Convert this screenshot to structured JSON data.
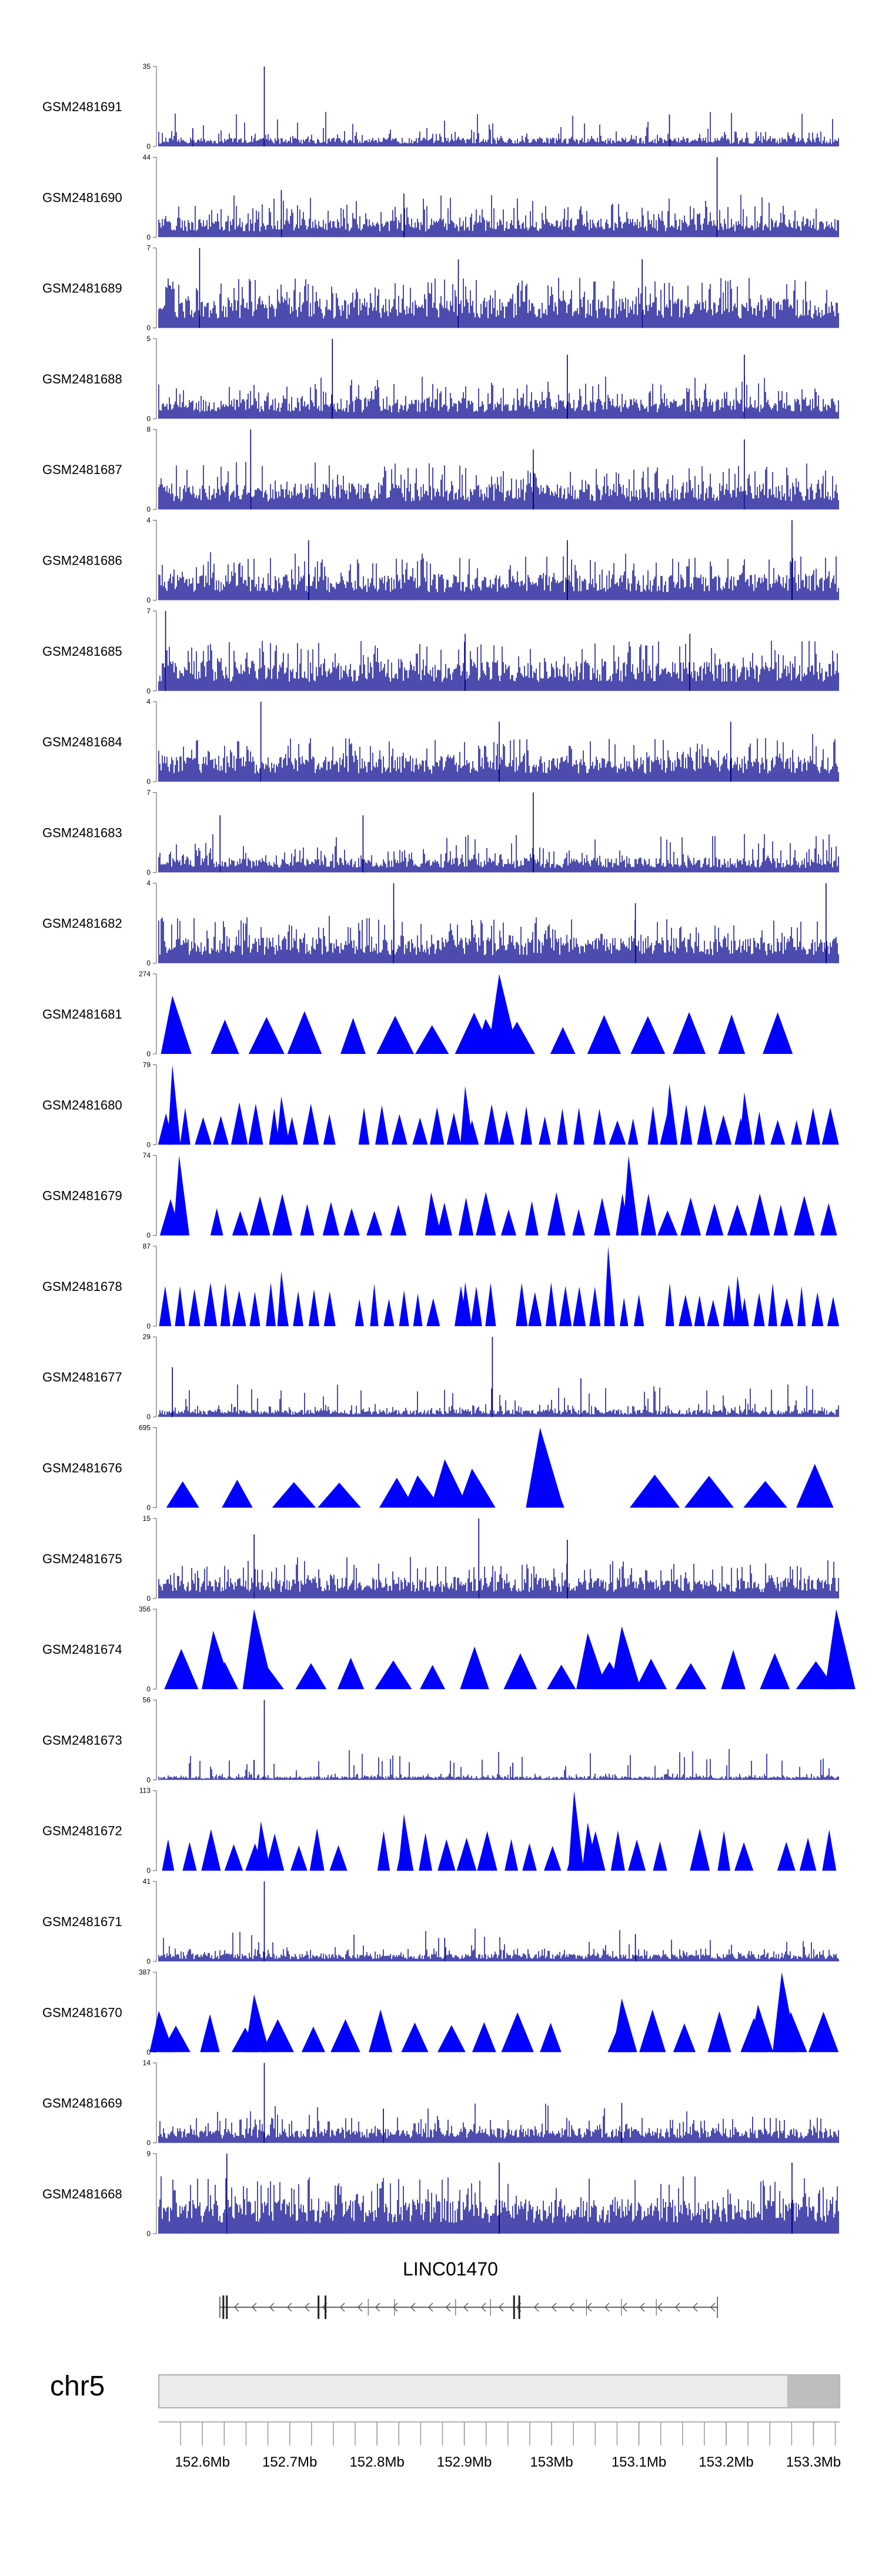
{
  "chart_data": {
    "type": "genome-tracks",
    "chromosome": "chr5",
    "region_mb": [
      152.55,
      153.33
    ],
    "colors": {
      "signal": "#00008b",
      "peak": "#0000ff",
      "ideogram": "#ebebeb",
      "ideogram_band": "#bebebe"
    },
    "tracks": [
      {
        "name": "GSM2481691",
        "kind": "signal",
        "ymax": "35",
        "ymax_value": 35,
        "baseline": 3,
        "spikes": [
          [
            0.155,
            35
          ],
          [
            0.75,
            14
          ],
          [
            0.05,
            8
          ]
        ]
      },
      {
        "name": "GSM2481690",
        "kind": "signal",
        "ymax": "44",
        "ymax_value": 44,
        "baseline": 8,
        "spikes": [
          [
            0.82,
            44
          ],
          [
            0.18,
            26
          ],
          [
            0.36,
            24
          ]
        ]
      },
      {
        "name": "GSM2481689",
        "kind": "signal",
        "ymax": "7",
        "ymax_value": 7,
        "baseline": 2,
        "spikes": [
          [
            0.06,
            7
          ],
          [
            0.44,
            6
          ],
          [
            0.71,
            6
          ]
        ]
      },
      {
        "name": "GSM2481688",
        "kind": "signal",
        "ymax": "5",
        "ymax_value": 5,
        "baseline": 1,
        "spikes": [
          [
            0.255,
            5
          ],
          [
            0.6,
            4
          ],
          [
            0.86,
            4
          ]
        ]
      },
      {
        "name": "GSM2481687",
        "kind": "signal",
        "ymax": "8",
        "ymax_value": 8,
        "baseline": 2,
        "spikes": [
          [
            0.135,
            8
          ],
          [
            0.86,
            7
          ],
          [
            0.55,
            6
          ]
        ]
      },
      {
        "name": "GSM2481686",
        "kind": "signal",
        "ymax": "4",
        "ymax_value": 4,
        "baseline": 1,
        "spikes": [
          [
            0.93,
            4
          ],
          [
            0.22,
            3
          ],
          [
            0.6,
            3
          ]
        ]
      },
      {
        "name": "GSM2481685",
        "kind": "signal",
        "ymax": "7",
        "ymax_value": 7,
        "baseline": 2,
        "spikes": [
          [
            0.01,
            7
          ],
          [
            0.45,
            5
          ],
          [
            0.78,
            5
          ]
        ]
      },
      {
        "name": "GSM2481684",
        "kind": "signal",
        "ymax": "4",
        "ymax_value": 4,
        "baseline": 1,
        "spikes": [
          [
            0.15,
            4
          ],
          [
            0.5,
            3
          ],
          [
            0.84,
            3
          ]
        ]
      },
      {
        "name": "GSM2481683",
        "kind": "signal",
        "ymax": "7",
        "ymax_value": 7,
        "baseline": 1,
        "spikes": [
          [
            0.55,
            7
          ],
          [
            0.09,
            5
          ],
          [
            0.3,
            5
          ]
        ]
      },
      {
        "name": "GSM2481682",
        "kind": "signal",
        "ymax": "4",
        "ymax_value": 4,
        "baseline": 1,
        "spikes": [
          [
            0.345,
            4
          ],
          [
            0.7,
            3
          ],
          [
            0.98,
            4
          ]
        ]
      },
      {
        "name": "GSM2481681",
        "kind": "peak",
        "ymax": "274",
        "ymax_value": 274,
        "n": 16,
        "big": [
          [
            0.5,
            274
          ],
          [
            0.02,
            200
          ],
          [
            0.48,
            120
          ]
        ]
      },
      {
        "name": "GSM2481680",
        "kind": "peak",
        "ymax": "79",
        "ymax_value": 79,
        "n": 38,
        "big": [
          [
            0.02,
            79
          ],
          [
            0.75,
            60
          ],
          [
            0.45,
            58
          ],
          [
            0.86,
            52
          ],
          [
            0.18,
            48
          ]
        ]
      },
      {
        "name": "GSM2481679",
        "kind": "peak",
        "ymax": "74",
        "ymax_value": 74,
        "n": 30,
        "big": [
          [
            0.03,
            74
          ],
          [
            0.69,
            74
          ],
          [
            0.4,
            40
          ]
        ]
      },
      {
        "name": "GSM2481678",
        "kind": "peak",
        "ymax": "87",
        "ymax_value": 87,
        "n": 46,
        "big": [
          [
            0.66,
            87
          ],
          [
            0.18,
            60
          ],
          [
            0.85,
            55
          ],
          [
            0.45,
            48
          ]
        ]
      },
      {
        "name": "GSM2481677",
        "kind": "signal",
        "ymax": "29",
        "ymax_value": 29,
        "baseline": 2,
        "spikes": [
          [
            0.49,
            29
          ],
          [
            0.02,
            18
          ],
          [
            0.62,
            14
          ]
        ]
      },
      {
        "name": "GSM2481676",
        "kind": "peak",
        "ymax": "695",
        "ymax_value": 695,
        "n": 13,
        "big": [
          [
            0.56,
            695
          ],
          [
            0.42,
            420
          ],
          [
            0.46,
            340
          ],
          [
            0.38,
            280
          ]
        ]
      },
      {
        "name": "GSM2481675",
        "kind": "signal",
        "ymax": "15",
        "ymax_value": 15,
        "baseline": 3,
        "spikes": [
          [
            0.47,
            15
          ],
          [
            0.14,
            12
          ],
          [
            0.6,
            11
          ]
        ]
      },
      {
        "name": "GSM2481674",
        "kind": "peak",
        "ymax": "356",
        "ymax_value": 356,
        "n": 16,
        "big": [
          [
            0.14,
            356
          ],
          [
            0.08,
            260
          ],
          [
            0.63,
            250
          ],
          [
            0.68,
            280
          ],
          [
            0.995,
            356
          ]
        ]
      },
      {
        "name": "GSM2481673",
        "kind": "signal",
        "ymax": "56",
        "ymax_value": 56,
        "baseline": 2,
        "spikes": [
          [
            0.155,
            56
          ],
          [
            0.52,
            12
          ],
          [
            0.14,
            14
          ]
        ]
      },
      {
        "name": "GSM2481672",
        "kind": "peak",
        "ymax": "113",
        "ymax_value": 113,
        "n": 32,
        "big": [
          [
            0.61,
            113
          ],
          [
            0.36,
            80
          ],
          [
            0.15,
            70
          ],
          [
            0.63,
            68
          ]
        ]
      },
      {
        "name": "GSM2481671",
        "kind": "signal",
        "ymax": "41",
        "ymax_value": 41,
        "baseline": 3,
        "spikes": [
          [
            0.155,
            41
          ],
          [
            0.7,
            14
          ],
          [
            0.42,
            12
          ]
        ]
      },
      {
        "name": "GSM2481670",
        "kind": "peak",
        "ymax": "387",
        "ymax_value": 387,
        "n": 20,
        "big": [
          [
            0.915,
            387
          ],
          [
            0.14,
            280
          ],
          [
            0.68,
            260
          ],
          [
            0.88,
            230
          ],
          [
            0.0,
            200
          ]
        ]
      },
      {
        "name": "GSM2481669",
        "kind": "signal",
        "ymax": "14",
        "ymax_value": 14,
        "baseline": 2,
        "spikes": [
          [
            0.155,
            14
          ],
          [
            0.68,
            7
          ],
          [
            0.33,
            6
          ]
        ]
      },
      {
        "name": "GSM2481668",
        "kind": "signal",
        "ymax": "9",
        "ymax_value": 9,
        "baseline": 3,
        "spikes": [
          [
            0.1,
            9
          ],
          [
            0.5,
            8
          ],
          [
            0.93,
            8
          ]
        ]
      }
    ],
    "y_min_label": "0",
    "gene": {
      "name": "LINC01470",
      "start_mb": 152.62,
      "end_mb": 153.19,
      "strand": "-",
      "exons_mb": [
        152.624,
        152.628,
        152.733,
        152.741,
        152.957,
        152.963
      ]
    },
    "ideogram_highlight_mb": [
      153.27,
      153.33
    ],
    "axis": {
      "minor_step_mb": 0.025,
      "ticks": [
        {
          "value": 152.6,
          "label": "152.6Mb"
        },
        {
          "value": 152.7,
          "label": "152.7Mb"
        },
        {
          "value": 152.8,
          "label": "152.8Mb"
        },
        {
          "value": 152.9,
          "label": "152.9Mb"
        },
        {
          "value": 153.0,
          "label": "153Mb"
        },
        {
          "value": 153.1,
          "label": "153.1Mb"
        },
        {
          "value": 153.2,
          "label": "153.2Mb"
        },
        {
          "value": 153.3,
          "label": "153.3Mb"
        }
      ]
    }
  }
}
